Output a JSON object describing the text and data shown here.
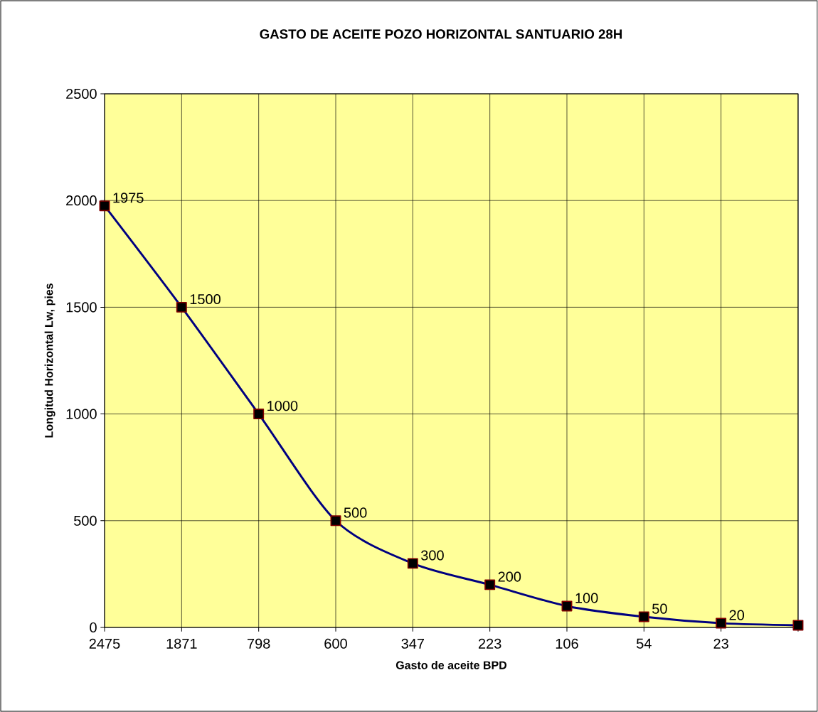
{
  "chart_data": {
    "type": "line",
    "title": "GASTO DE ACEITE POZO HORIZONTAL SANTUARIO 28H",
    "xlabel": "Gasto de aceite BPD",
    "ylabel": "Longitud Horizontal Lw, pies",
    "categories": [
      "2475",
      "1871",
      "798",
      "600",
      "347",
      "223",
      "106",
      "54",
      "23",
      null
    ],
    "series": [
      {
        "color": "#000080",
        "values": [
          1975,
          1500,
          1000,
          500,
          300,
          200,
          100,
          50,
          20,
          10
        ],
        "value_labels": [
          "1975",
          "1500",
          "1000",
          "500",
          "300",
          "200",
          "100",
          "50",
          "20",
          null
        ]
      }
    ],
    "ylim": [
      0,
      2500
    ],
    "yticks": [
      0,
      500,
      1000,
      1500,
      2000,
      2500
    ],
    "grid": true,
    "marker": "square",
    "line_style": "solid"
  }
}
